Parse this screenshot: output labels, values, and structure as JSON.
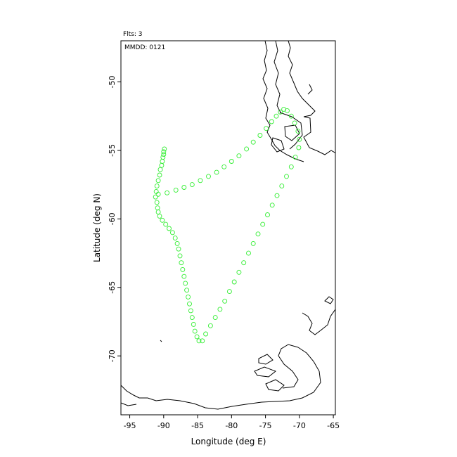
{
  "header": {
    "flights": "Flts: 3",
    "date": "MMDD: 0121"
  },
  "chart_data": {
    "type": "scatter",
    "xlabel": "Longitude (deg E)",
    "ylabel": "Latitude (deg N)",
    "xlim": [
      -96.3,
      -64.7
    ],
    "ylim": [
      -74.3,
      -47.0
    ],
    "x_ticks": [
      -95,
      -90,
      -85,
      -80,
      -75,
      -70,
      -65
    ],
    "y_ticks": [
      -50,
      -55,
      -60,
      -65,
      -70
    ],
    "colors": {
      "track": "#33ee33",
      "coast": "#000000"
    },
    "series": [
      {
        "points": [
          [
            -89.9,
            -54.9
          ],
          [
            -90.0,
            -55.1
          ],
          [
            -90.0,
            -55.3
          ],
          [
            -90.1,
            -55.5
          ],
          [
            -90.2,
            -55.8
          ],
          [
            -90.3,
            -56.1
          ],
          [
            -90.5,
            -56.4
          ],
          [
            -90.6,
            -56.8
          ],
          [
            -90.8,
            -57.2
          ],
          [
            -91.0,
            -57.6
          ],
          [
            -91.1,
            -58.0
          ],
          [
            -91.2,
            -58.4
          ],
          [
            -91.0,
            -58.8
          ],
          [
            -90.9,
            -59.2
          ],
          [
            -90.8,
            -59.5
          ],
          [
            -90.6,
            -59.8
          ],
          [
            -90.2,
            -60.1
          ],
          [
            -89.7,
            -60.4
          ],
          [
            -89.2,
            -60.7
          ],
          [
            -88.7,
            -61.0
          ],
          [
            -88.3,
            -61.4
          ],
          [
            -88.0,
            -61.8
          ],
          [
            -87.8,
            -62.2
          ],
          [
            -87.6,
            -62.7
          ],
          [
            -87.4,
            -63.2
          ],
          [
            -87.2,
            -63.7
          ],
          [
            -87.0,
            -64.2
          ],
          [
            -86.8,
            -64.7
          ],
          [
            -86.6,
            -65.2
          ],
          [
            -86.4,
            -65.7
          ],
          [
            -86.2,
            -66.2
          ],
          [
            -86.0,
            -66.7
          ],
          [
            -85.8,
            -67.2
          ],
          [
            -85.6,
            -67.7
          ],
          [
            -85.4,
            -68.2
          ],
          [
            -85.1,
            -68.6
          ],
          [
            -84.8,
            -68.9
          ],
          [
            -84.3,
            -68.9
          ],
          [
            -83.8,
            -68.4
          ],
          [
            -83.1,
            -67.8
          ],
          [
            -82.4,
            -67.2
          ],
          [
            -81.7,
            -66.6
          ],
          [
            -81.0,
            -66.0
          ],
          [
            -80.3,
            -65.3
          ],
          [
            -79.6,
            -64.6
          ],
          [
            -78.9,
            -63.9
          ],
          [
            -78.2,
            -63.2
          ],
          [
            -77.5,
            -62.5
          ],
          [
            -76.8,
            -61.8
          ],
          [
            -76.1,
            -61.1
          ],
          [
            -75.4,
            -60.4
          ],
          [
            -74.7,
            -59.7
          ],
          [
            -74.0,
            -59.0
          ],
          [
            -73.3,
            -58.3
          ],
          [
            -72.6,
            -57.6
          ],
          [
            -71.9,
            -56.9
          ],
          [
            -71.2,
            -56.2
          ],
          [
            -70.6,
            -55.5
          ],
          [
            -70.1,
            -54.8
          ],
          [
            -70.0,
            -54.2
          ],
          [
            -70.2,
            -53.6
          ],
          [
            -70.7,
            -53.0
          ],
          [
            -71.2,
            -52.5
          ],
          [
            -71.8,
            -52.1
          ],
          [
            -72.3,
            -52.0
          ],
          [
            -72.8,
            -52.2
          ],
          [
            -73.4,
            -52.5
          ],
          [
            -74.1,
            -52.9
          ],
          [
            -74.9,
            -53.4
          ],
          [
            -75.8,
            -53.9
          ],
          [
            -76.8,
            -54.4
          ],
          [
            -77.8,
            -54.9
          ],
          [
            -78.9,
            -55.4
          ],
          [
            -80.0,
            -55.8
          ],
          [
            -81.1,
            -56.2
          ],
          [
            -82.2,
            -56.6
          ],
          [
            -83.4,
            -56.9
          ],
          [
            -84.6,
            -57.2
          ],
          [
            -85.8,
            -57.5
          ],
          [
            -87.0,
            -57.7
          ],
          [
            -88.2,
            -57.9
          ],
          [
            -89.5,
            -58.1
          ],
          [
            -90.8,
            -58.2
          ]
        ]
      }
    ]
  }
}
